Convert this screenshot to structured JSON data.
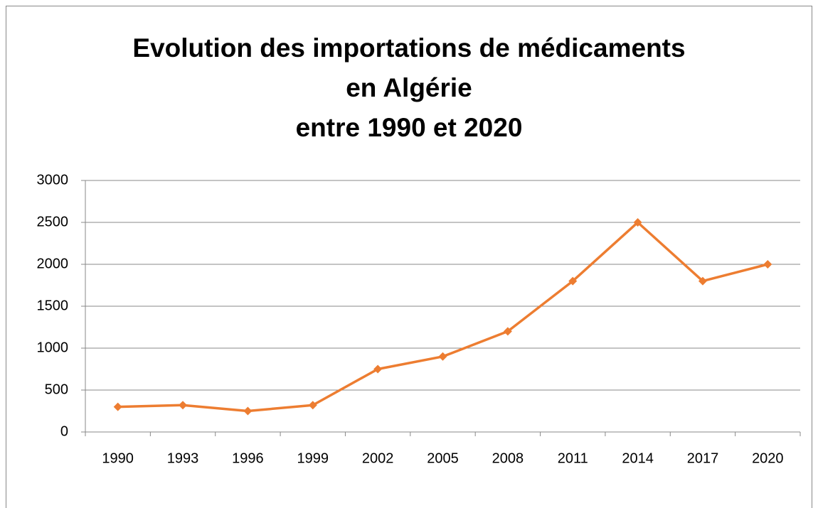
{
  "chart_data": {
    "type": "line",
    "title": [
      "Evolution des importations de médicaments",
      "en Algérie",
      "entre 1990 et 2020"
    ],
    "categories": [
      "1990",
      "1993",
      "1996",
      "1999",
      "2002",
      "2005",
      "2008",
      "2011",
      "2014",
      "2017",
      "2020"
    ],
    "values": [
      300,
      320,
      250,
      320,
      750,
      900,
      1200,
      1800,
      2500,
      1800,
      2000
    ],
    "color": "#ed7d31",
    "ylim": [
      0,
      3000
    ],
    "yticks": [
      0,
      500,
      1000,
      1500,
      2000,
      2500,
      3000
    ],
    "grid": true
  }
}
